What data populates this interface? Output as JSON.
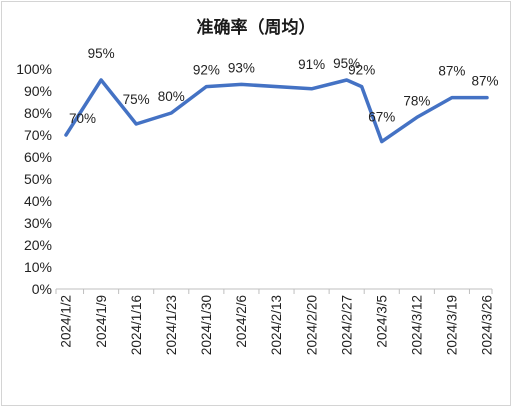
{
  "chart_data": {
    "type": "line",
    "title": "准确率（周均）",
    "xlabel": "",
    "ylabel": "",
    "ylim": [
      0,
      100
    ],
    "yticks": [
      "0%",
      "10%",
      "20%",
      "30%",
      "40%",
      "50%",
      "60%",
      "70%",
      "80%",
      "90%",
      "100%"
    ],
    "x_tick_labels": [
      "2024/1/2",
      "2024/1/9",
      "2024/1/16",
      "2024/1/23",
      "2024/1/30",
      "2024/2/6",
      "2024/2/13",
      "2024/2/20",
      "2024/2/27",
      "2024/3/5",
      "2024/3/12",
      "2024/3/19",
      "2024/3/26"
    ],
    "series": [
      {
        "color": "#4472C4",
        "points": [
          {
            "x": "2024/1/2",
            "y": 70,
            "label": "70%"
          },
          {
            "x": "2024/1/9",
            "y": 95,
            "label": "95%"
          },
          {
            "x": "2024/1/16",
            "y": 75,
            "label": "75%"
          },
          {
            "x": "2024/1/23",
            "y": 80,
            "label": "80%"
          },
          {
            "x": "2024/1/30",
            "y": 92,
            "label": "92%"
          },
          {
            "x": "2024/2/6",
            "y": 93,
            "label": "93%"
          },
          {
            "x": "2024/2/20",
            "y": 91,
            "label": "91%"
          },
          {
            "x": "2024/2/27",
            "y": 95,
            "label": "95%"
          },
          {
            "x": "2024/3/1",
            "y": 92,
            "label": "92%"
          },
          {
            "x": "2024/3/5",
            "y": 67,
            "label": "67%"
          },
          {
            "x": "2024/3/12",
            "y": 78,
            "label": "78%"
          },
          {
            "x": "2024/3/19",
            "y": 87,
            "label": "87%"
          },
          {
            "x": "2024/3/26",
            "y": 87,
            "label": "87%"
          }
        ]
      }
    ],
    "grid": false,
    "legend": "none"
  }
}
